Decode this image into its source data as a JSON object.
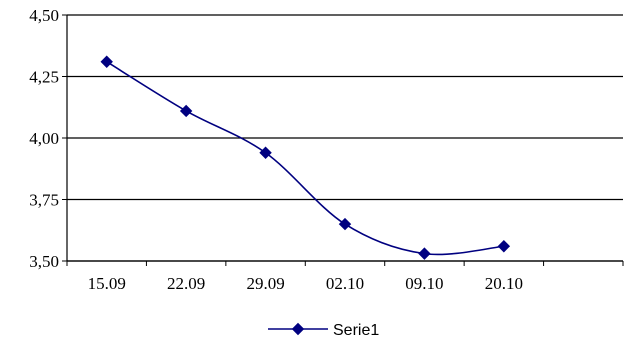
{
  "chart_data": {
    "type": "line",
    "categories": [
      "15.09",
      "22.09",
      "29.09",
      "02.10",
      "09.10",
      "20.10"
    ],
    "series": [
      {
        "name": "Serie1",
        "values": [
          4.31,
          4.11,
          3.94,
          3.65,
          3.53,
          3.56
        ],
        "color": "#000080"
      }
    ],
    "ylim": [
      3.5,
      4.5
    ],
    "yticks": [
      3.5,
      3.75,
      4.0,
      4.25,
      4.5
    ],
    "ytick_labels": [
      "3,50",
      "3,75",
      "4,00",
      "4,25",
      "4,50"
    ],
    "grid": "horizontal",
    "legend_position": "bottom",
    "line_style": "smooth",
    "marker": "diamond",
    "colors": {
      "series": "#000080",
      "grid": "#000000",
      "axis": "#000000"
    }
  }
}
